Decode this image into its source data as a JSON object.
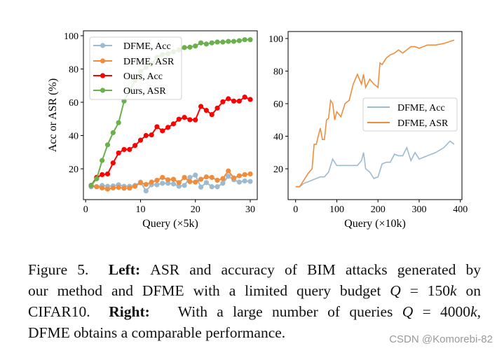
{
  "chart_data": [
    {
      "type": "line",
      "position": "left",
      "xlabel": "Query (×5k)",
      "ylabel": "Acc or ASR (%)",
      "xlim": [
        0,
        31
      ],
      "ylim": [
        3,
        101
      ],
      "xticks": [
        0,
        10,
        20,
        30
      ],
      "yticks": [
        20,
        40,
        60,
        80,
        100
      ],
      "grid": false,
      "legend": "upper-left",
      "x": [
        1,
        2,
        3,
        4,
        5,
        6,
        7,
        8,
        9,
        10,
        11,
        12,
        13,
        14,
        15,
        16,
        17,
        18,
        19,
        20,
        21,
        22,
        23,
        24,
        25,
        26,
        27,
        28,
        29,
        30
      ],
      "series": [
        {
          "name": "DFME, Acc",
          "color": "#9dbbd0",
          "marker": "circle",
          "values": [
            9.2,
            9.2,
            10,
            9.5,
            9.7,
            10.4,
            9.5,
            9.5,
            10,
            12,
            6.7,
            10.4,
            10.4,
            11.3,
            11.3,
            10.9,
            9.5,
            10,
            14.8,
            16.2,
            9,
            11.7,
            9.2,
            9.2,
            11.3,
            15.5,
            13.4,
            12,
            12.7,
            12.4
          ]
        },
        {
          "name": "DFME, ASR",
          "color": "#f08d3c",
          "marker": "circle",
          "values": [
            10,
            9.2,
            8.5,
            7.8,
            8.5,
            8.8,
            8.3,
            8.4,
            9.5,
            11.6,
            10.6,
            12,
            13.1,
            14.8,
            13.4,
            13.7,
            11.7,
            14.8,
            12.3,
            12,
            13.7,
            15.1,
            14.8,
            13.1,
            14.1,
            18.7,
            14.5,
            15.8,
            16.5,
            16.9
          ]
        },
        {
          "name": "Ours, Acc",
          "color": "#ff0000",
          "marker": "circle",
          "values": [
            10,
            14.8,
            16.5,
            16.9,
            23.5,
            29.5,
            31.6,
            31.6,
            34,
            37.2,
            40,
            40.4,
            45.3,
            42.8,
            44.9,
            47,
            49.8,
            50.9,
            49.5,
            49.4,
            57.5,
            55.1,
            52.6,
            56.5,
            60.3,
            62.1,
            60.7,
            60.7,
            63.1,
            61.7
          ]
        },
        {
          "name": "Ours, ASR",
          "color": "#6ab04c",
          "marker": "circle",
          "values": [
            10,
            14,
            25,
            34.4,
            41.7,
            47.7,
            60.7,
            67,
            73,
            78.5,
            81,
            83,
            87,
            88.7,
            89.2,
            90.3,
            91.5,
            92.9,
            93.1,
            93.8,
            95.7,
            95,
            95.7,
            96.2,
            96.2,
            96.6,
            96.6,
            97,
            97.6,
            97.6
          ]
        }
      ]
    },
    {
      "type": "line",
      "position": "right",
      "xlabel": "Query (×10k)",
      "ylabel": "",
      "xlim": [
        -18,
        405
      ],
      "ylim": [
        3,
        102
      ],
      "xticks": [
        0,
        100,
        200,
        300,
        400
      ],
      "yticks": [
        20,
        40,
        60,
        80,
        100
      ],
      "grid": false,
      "legend": "center-right",
      "series": [
        {
          "name": "DFME, Acc",
          "color": "#9dbbd0",
          "x": [
            0,
            10,
            20,
            30,
            40,
            50,
            60,
            70,
            80,
            90,
            100,
            110,
            120,
            140,
            150,
            160,
            165,
            170,
            180,
            190,
            200,
            210,
            220,
            230,
            240,
            250,
            260,
            270,
            280,
            290,
            300,
            320,
            340,
            360,
            375,
            385
          ],
          "values": [
            9,
            9,
            11,
            12,
            13,
            14,
            15,
            15,
            18,
            26,
            22,
            22,
            22,
            22,
            22,
            25,
            30,
            20,
            18,
            14,
            15,
            23,
            24,
            24,
            29,
            28,
            28,
            33,
            25,
            30,
            26,
            28,
            30,
            33,
            37,
            35
          ]
        },
        {
          "name": "DFME, ASR",
          "color": "#f08d3c",
          "x": [
            0,
            10,
            20,
            30,
            40,
            45,
            50,
            60,
            65,
            70,
            75,
            80,
            85,
            90,
            95,
            100,
            110,
            120,
            130,
            140,
            150,
            160,
            165,
            170,
            180,
            190,
            200,
            205,
            210,
            220,
            230,
            240,
            250,
            260,
            270,
            280,
            290,
            300,
            320,
            340,
            360,
            385
          ],
          "values": [
            9,
            9,
            13,
            17,
            20,
            35,
            35,
            45,
            38,
            38,
            50,
            51,
            62,
            60,
            50,
            55,
            52,
            60,
            62,
            72,
            78,
            72,
            78,
            70,
            75,
            72,
            70,
            85,
            84,
            88,
            90,
            91,
            93,
            91,
            93,
            95,
            95,
            94,
            96,
            96,
            97,
            99
          ]
        }
      ]
    }
  ],
  "caption": {
    "lines": [
      [
        {
          "t": "Figure 5.  ",
          "s": "n"
        },
        {
          "t": "Left:",
          "s": "b"
        },
        {
          "t": " ASR and accuracy of BIM attacks generated by",
          "s": "n"
        }
      ],
      [
        {
          "t": "our method and DFME with a limited query budget ",
          "s": "n"
        },
        {
          "t": "Q",
          "s": "m"
        },
        {
          "t": " = 150",
          "s": "n"
        },
        {
          "t": "k",
          "s": "m"
        },
        {
          "t": " on",
          "s": "n"
        }
      ],
      [
        {
          "t": "CIFAR10.  ",
          "s": "n"
        },
        {
          "t": "Right:",
          "s": "b"
        },
        {
          "t": "   With a large number of queries ",
          "s": "n"
        },
        {
          "t": "Q",
          "s": "m"
        },
        {
          "t": " = 4000",
          "s": "n"
        },
        {
          "t": "k",
          "s": "m"
        },
        {
          "t": ",",
          "s": "n"
        }
      ],
      [
        {
          "t": "DFME obtains a comparable performance.",
          "s": "n"
        }
      ]
    ]
  },
  "watermark": "CSDN @Komorebi-82"
}
